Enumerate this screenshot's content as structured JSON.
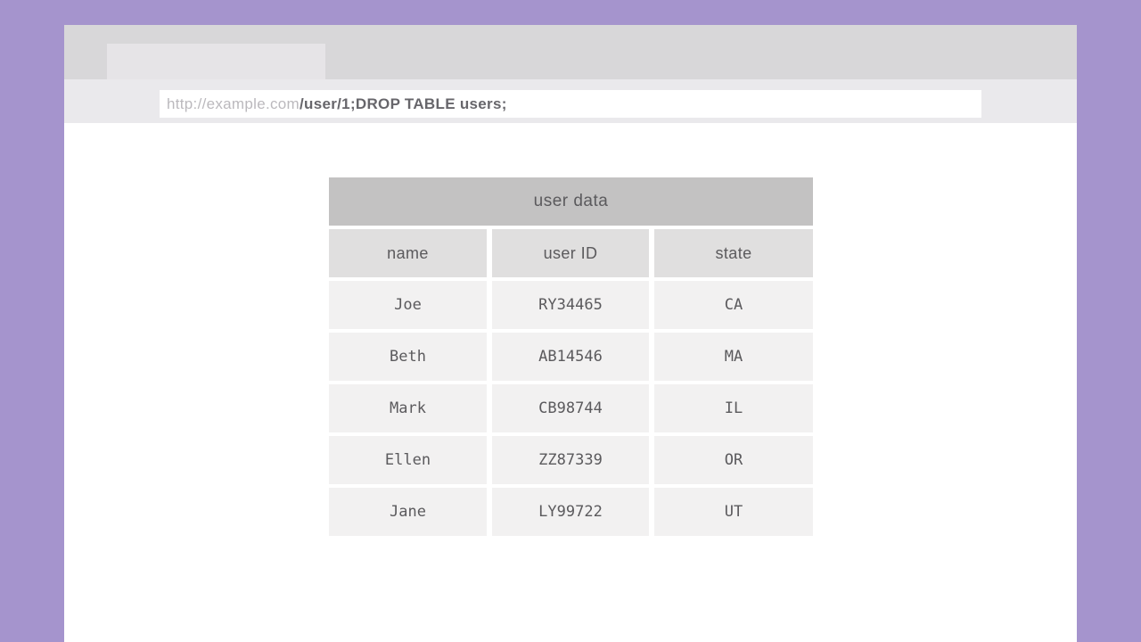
{
  "window": {
    "url": {
      "domain": "http://example.com",
      "path": "/user/1;DROP TABLE users;"
    }
  },
  "table": {
    "title": "user data",
    "columns": [
      "name",
      "user ID",
      "state"
    ],
    "rows": [
      {
        "name": "Joe",
        "user_id": "RY34465",
        "state": "CA"
      },
      {
        "name": "Beth",
        "user_id": "AB14546",
        "state": "MA"
      },
      {
        "name": "Mark",
        "user_id": "CB98744",
        "state": "IL"
      },
      {
        "name": "Ellen",
        "user_id": "ZZ87339",
        "state": "OR"
      },
      {
        "name": "Jane",
        "user_id": "LY99722",
        "state": "UT"
      }
    ]
  },
  "colors": {
    "backdrop": "#a594cd",
    "tab_bar": "#d8d7d9",
    "tab": "#e6e4e7",
    "url_row": "#eae9ec",
    "table_title_bg": "#c3c2c2",
    "table_header_bg": "#e0dfdf",
    "table_cell_bg": "#f2f1f1",
    "text": "#5b5a5d",
    "url_domain_text": "#bbb9bd",
    "url_path_text": "#67666b"
  }
}
